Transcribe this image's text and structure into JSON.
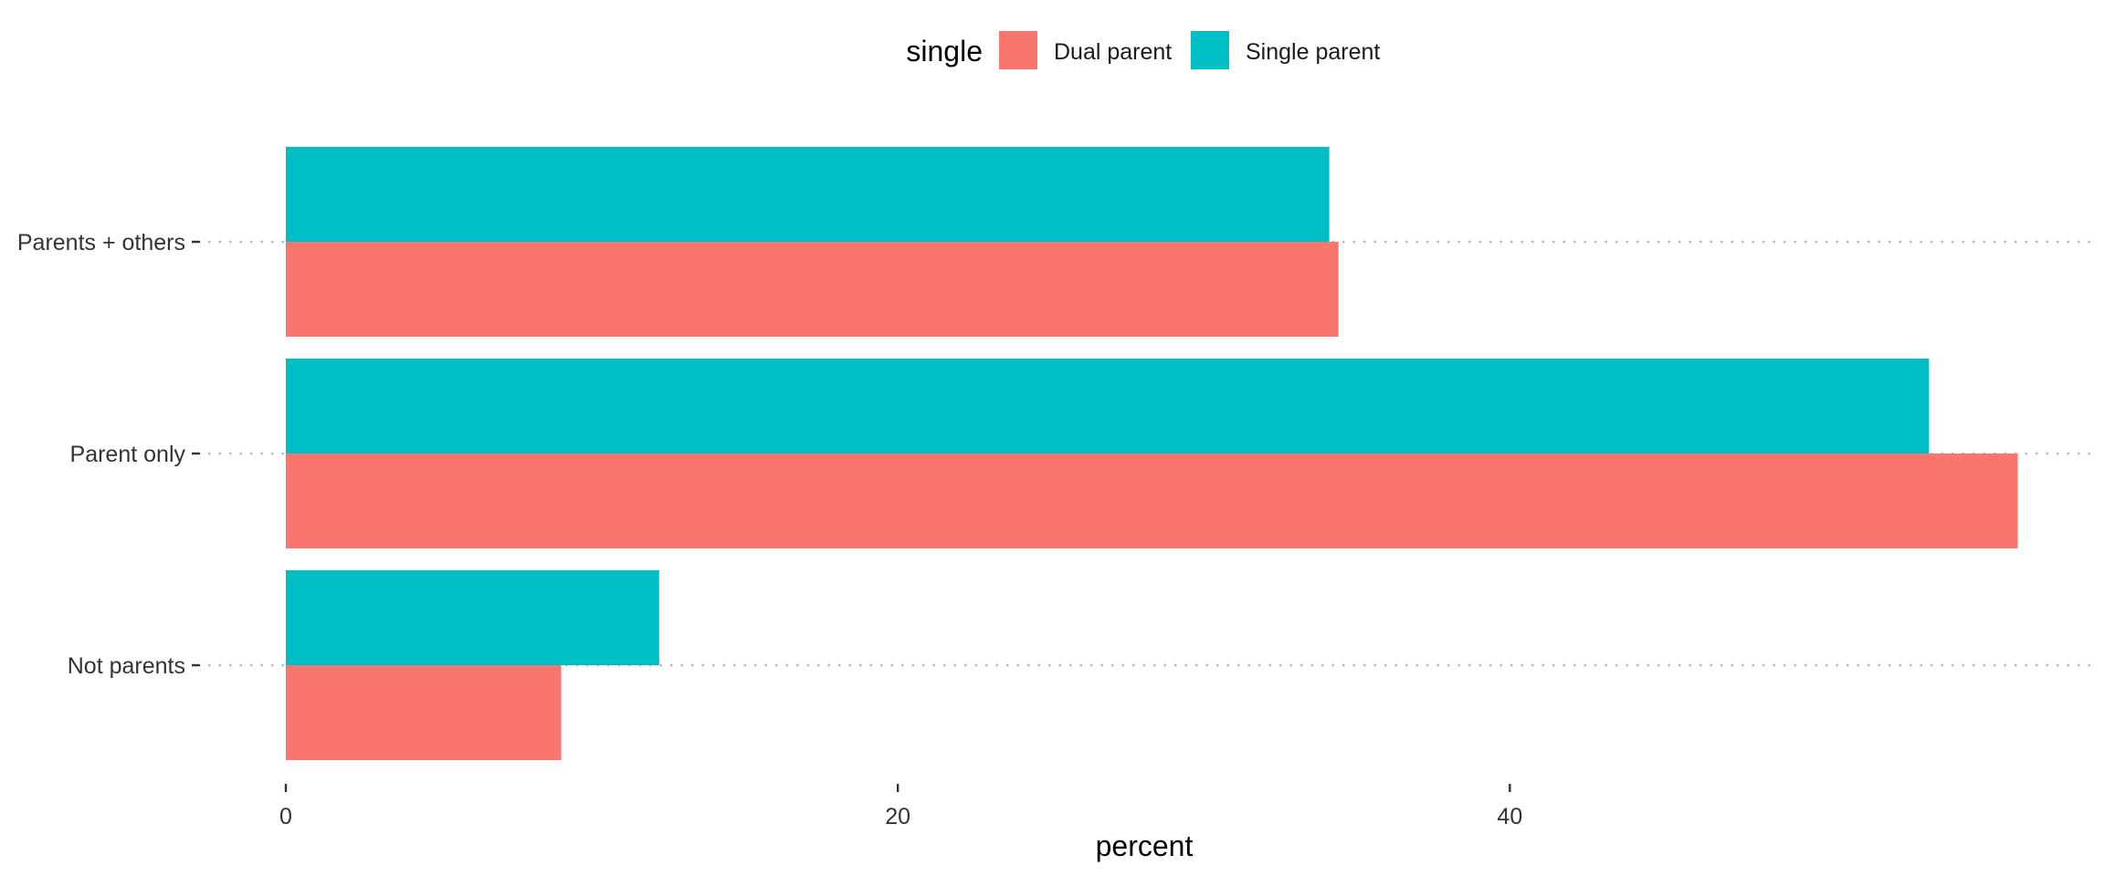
{
  "chart_data": {
    "type": "bar",
    "orientation": "horizontal",
    "categories": [
      "Parents + others",
      "Parent only",
      "Not parents"
    ],
    "series": [
      {
        "name": "Dual parent",
        "color": "#F8766D",
        "values": [
          34.4,
          56.6,
          9.0
        ]
      },
      {
        "name": "Single parent",
        "color": "#00BFC4",
        "values": [
          34.1,
          53.7,
          12.2
        ]
      }
    ],
    "legend": {
      "title": "single",
      "position": "top"
    },
    "xlabel": "percent",
    "ylabel": "",
    "xlim": [
      0,
      59
    ],
    "xticks": [
      0,
      20,
      40
    ],
    "grid": "horizontal-dotted-at-categories"
  }
}
